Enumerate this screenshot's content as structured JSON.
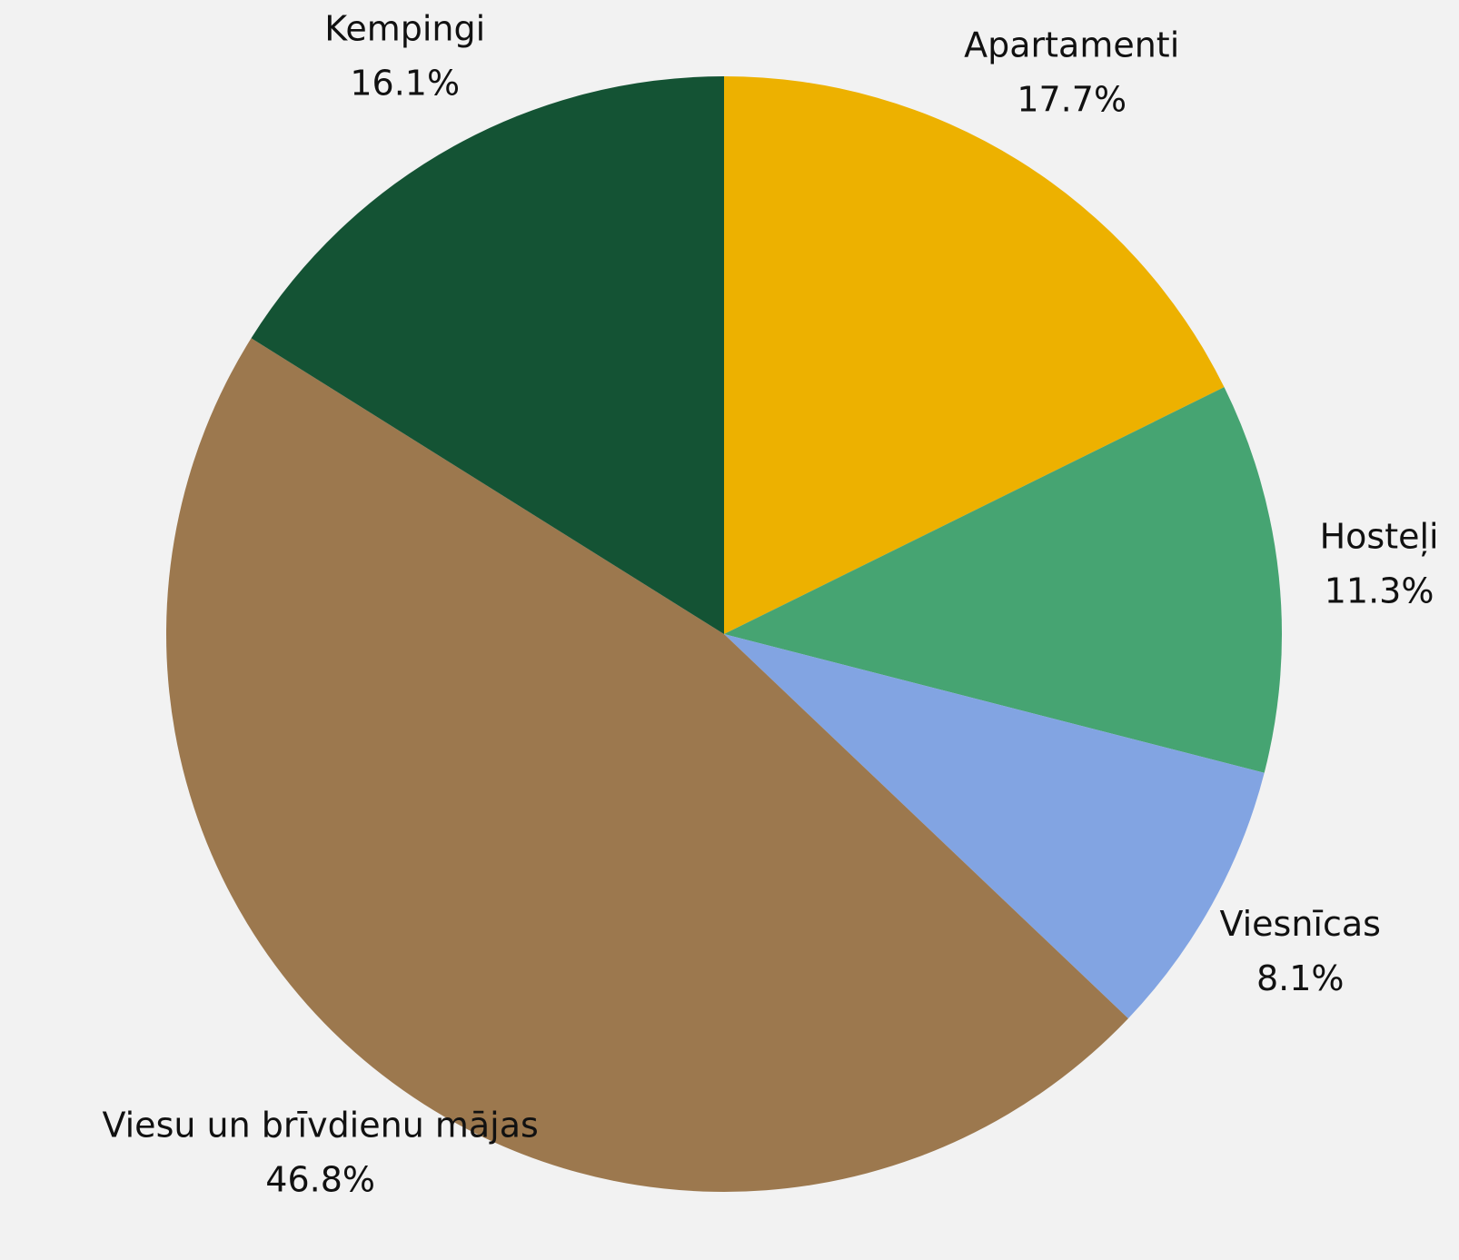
{
  "chart_data": {
    "type": "pie",
    "categories": [
      "Apartamenti",
      "Hosteļi",
      "Viesnīcas",
      "Viesu un brīvdienu mājas",
      "Kempingi"
    ],
    "values": [
      17.7,
      11.3,
      8.1,
      46.8,
      16.1
    ],
    "value_labels": [
      "17.7%",
      "11.3%",
      "8.1%",
      "46.8%",
      "16.1%"
    ],
    "colors": [
      "#edb100",
      "#46a472",
      "#82a4e2",
      "#9c784e",
      "#145334"
    ]
  }
}
